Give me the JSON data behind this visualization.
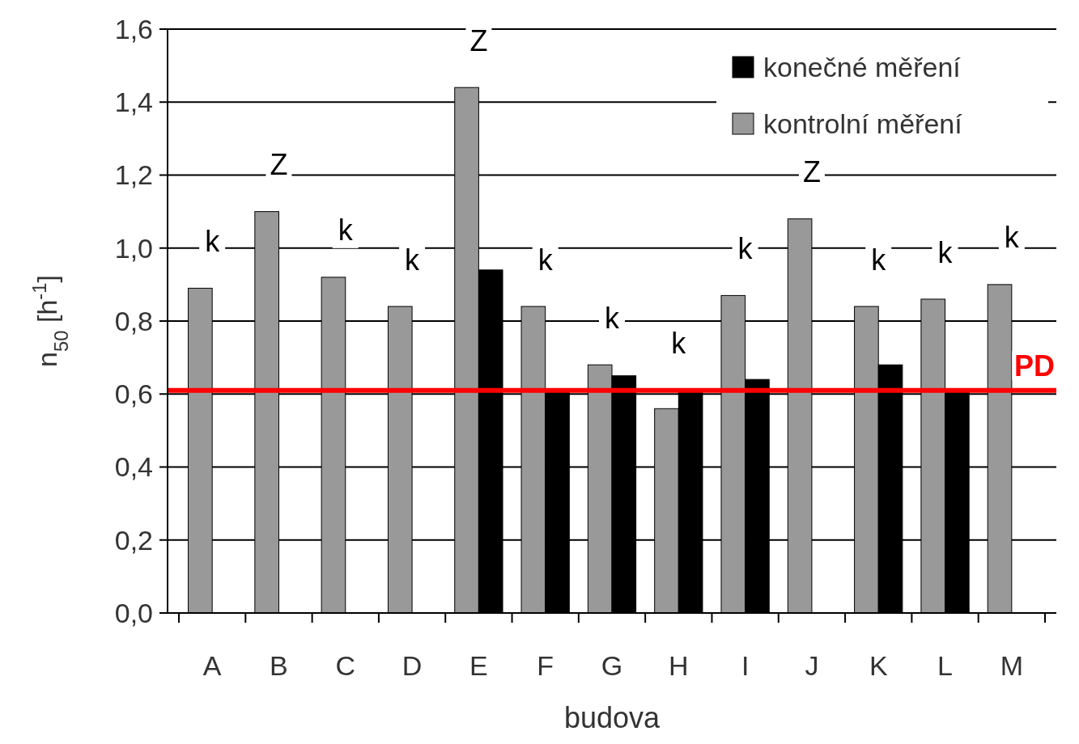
{
  "chart_data": {
    "type": "bar",
    "xlabel": "budova",
    "ylabel": "n$_{50}$ [h$^{-1}$]",
    "categories": [
      "A",
      "B",
      "C",
      "D",
      "E",
      "F",
      "G",
      "H",
      "I",
      "J",
      "K",
      "L",
      "M"
    ],
    "series": [
      {
        "name": "kontrolní měření",
        "color": "#999999",
        "values": [
          0.89,
          1.1,
          0.92,
          0.84,
          1.44,
          0.84,
          0.68,
          0.56,
          0.87,
          1.08,
          0.84,
          0.86,
          0.9
        ]
      },
      {
        "name": "konečné měření",
        "color": "#000000",
        "values": [
          null,
          null,
          null,
          null,
          0.94,
          0.61,
          0.65,
          0.61,
          0.64,
          null,
          0.68,
          0.61,
          null
        ]
      }
    ],
    "ylim": [
      0,
      1.6
    ],
    "yticks": [
      {
        "value": 0,
        "label": "0,0"
      },
      {
        "value": 0.2,
        "label": "0,2"
      },
      {
        "value": 0.4,
        "label": "0,4"
      },
      {
        "value": 0.6,
        "label": "0,6"
      },
      {
        "value": 0.8,
        "label": "0,8"
      },
      {
        "value": 1.0,
        "label": "1,0"
      },
      {
        "value": 1.2,
        "label": "1,2"
      },
      {
        "value": 1.4,
        "label": "1,4"
      },
      {
        "value": 1.6,
        "label": "1,6"
      }
    ],
    "grid": "y",
    "legend": "top right",
    "ref_lines": [
      {
        "axis": "y",
        "value": 0.61,
        "label": "PD",
        "color": "#ff0000"
      }
    ],
    "annotations": [
      "k",
      "Z",
      "k",
      "k",
      "Z",
      "k",
      "k",
      "k",
      "k",
      "Z",
      "k",
      "k",
      "k"
    ]
  }
}
